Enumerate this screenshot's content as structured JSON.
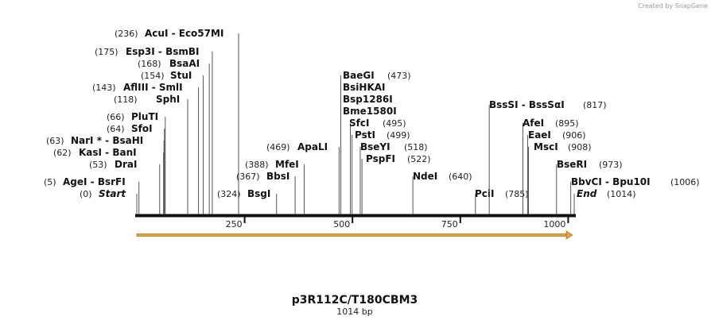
{
  "map": {
    "credit": "Created by SnapGene",
    "title": "p3R112C/T180CBM3",
    "subtitle": "1014 bp",
    "length": 1014,
    "xticks": [
      250,
      500,
      750,
      1000
    ],
    "sites": [
      {
        "names": [
          "Start"
        ],
        "label": "(0)",
        "position": 0
      },
      {
        "names": [
          "AgeI  - BsrFI"
        ],
        "label": "(5)",
        "position": 5
      },
      {
        "names": [
          "DraI"
        ],
        "label": "(53)",
        "position": 53
      },
      {
        "names": [
          "KasI  - BanI"
        ],
        "label": "(62)",
        "position": 62
      },
      {
        "names": [
          "NarI *  - BsaHI"
        ],
        "label": "(63)",
        "position": 63
      },
      {
        "names": [
          "SfoI"
        ],
        "label": "(64)",
        "position": 64
      },
      {
        "names": [
          "PluTI"
        ],
        "label": "(66)",
        "position": 66
      },
      {
        "names": [
          "SphI"
        ],
        "label": "(118)",
        "position": 118
      },
      {
        "names": [
          "AflIII  - SmlI"
        ],
        "label": "(143)",
        "position": 143
      },
      {
        "names": [
          "StuI"
        ],
        "label": "(154)",
        "position": 154
      },
      {
        "names": [
          "BsaAI"
        ],
        "label": "(168)",
        "position": 168
      },
      {
        "names": [
          "Esp3I  - BsmBI"
        ],
        "label": "(175)",
        "position": 175
      },
      {
        "names": [
          "AcuI  - Eco57MI"
        ],
        "label": "(236)",
        "position": 236
      },
      {
        "names": [
          "BsgI"
        ],
        "label": "(324)",
        "position": 324
      },
      {
        "names": [
          "BbsI"
        ],
        "label": "(367)",
        "position": 367
      },
      {
        "names": [
          "MfeI"
        ],
        "label": "(388)",
        "position": 388
      },
      {
        "names": [
          "ApaLI"
        ],
        "label": "(469)",
        "position": 469
      },
      {
        "names": [
          "BaeGI",
          "BsiHKAI",
          "Bsp1286I",
          "Bme1580I"
        ],
        "label": "(473)",
        "position": 473
      },
      {
        "names": [
          "SfcI"
        ],
        "label": "(495)",
        "position": 495
      },
      {
        "names": [
          "PstI"
        ],
        "label": "(499)",
        "position": 499
      },
      {
        "names": [
          "BseYI"
        ],
        "label": "(518)",
        "position": 518
      },
      {
        "names": [
          "PspFI"
        ],
        "label": "(522)",
        "position": 522
      },
      {
        "names": [
          "NdeI"
        ],
        "label": "(640)",
        "position": 640
      },
      {
        "names": [
          "PciI"
        ],
        "label": "(785)",
        "position": 785
      },
      {
        "names": [
          "BssSI  - BssSαI"
        ],
        "label": "(817)",
        "position": 817
      },
      {
        "names": [
          "AfeI"
        ],
        "label": "(895)",
        "position": 895
      },
      {
        "names": [
          "EaeI"
        ],
        "label": "(906)",
        "position": 906
      },
      {
        "names": [
          "MscI"
        ],
        "label": "(908)",
        "position": 908
      },
      {
        "names": [
          "BseRI"
        ],
        "label": "(973)",
        "position": 973
      },
      {
        "names": [
          "BbvCI  - Bpu10I"
        ],
        "label": "(1006)",
        "position": 1006
      },
      {
        "names": [
          "End"
        ],
        "label": "(1014)",
        "position": 1014
      }
    ]
  }
}
